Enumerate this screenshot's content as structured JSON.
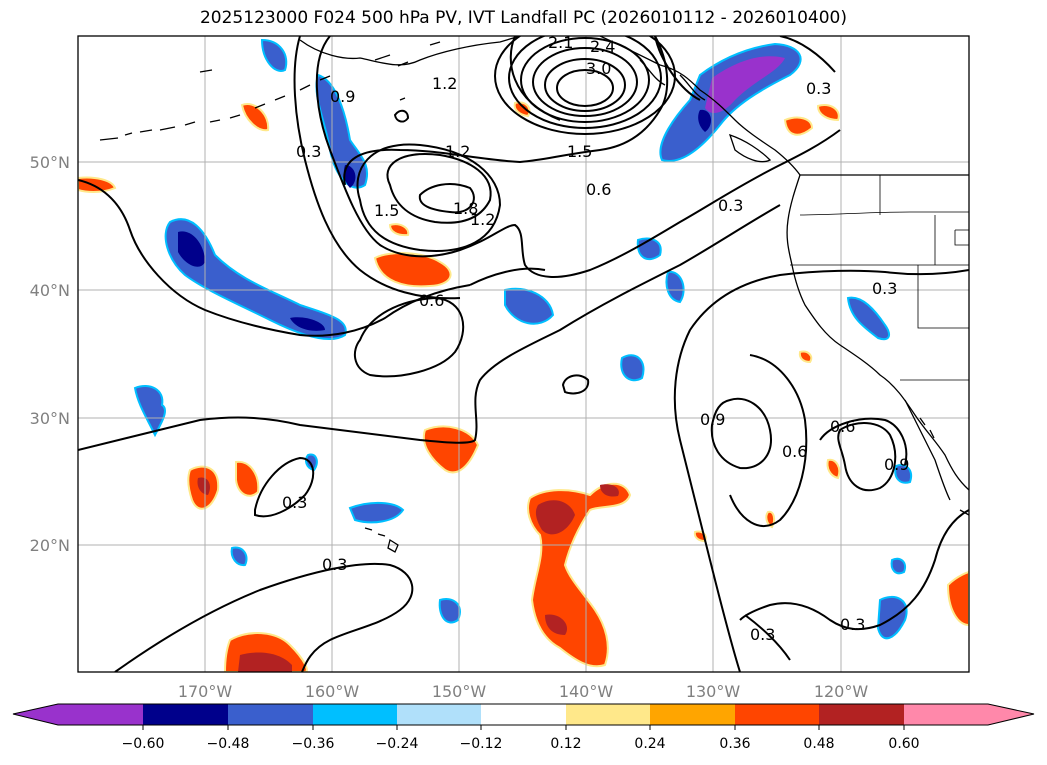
{
  "title": "2025123000 F024 500 hPa PV, IVT Landfall PC (2026010112 - 2026010400)",
  "map": {
    "lat_labels": [
      "50°N",
      "40°N",
      "30°N",
      "20°N"
    ],
    "lon_labels": [
      "170°W",
      "160°W",
      "150°W",
      "140°W",
      "130°W",
      "120°W"
    ],
    "contour_labels": [
      "2.1",
      "2.4",
      "3.0",
      "1.2",
      "1.2",
      "1.5",
      "0.9",
      "0.3",
      "1.5",
      "1.8",
      "1.2",
      "0.6",
      "0.3",
      "0.6",
      "0.3",
      "0.9",
      "0.6",
      "0.6",
      "0.9",
      "0.3",
      "0.3",
      "0.3",
      "0.3"
    ],
    "colors": {
      "contour": "#000000",
      "grid": "#b0b0b0",
      "land": "#000000"
    }
  },
  "colorbar": {
    "ticks": [
      "−0.60",
      "−0.48",
      "−0.36",
      "−0.24",
      "−0.12",
      "0.12",
      "0.24",
      "0.36",
      "0.48",
      "0.60"
    ],
    "colors": [
      "#9932cc",
      "#00008b",
      "#3a5fcd",
      "#00bfff",
      "#b0e0fa",
      "#ffffff",
      "#ffe88a",
      "#ffa500",
      "#ff4500",
      "#b22222",
      "#ff88aa"
    ]
  }
}
